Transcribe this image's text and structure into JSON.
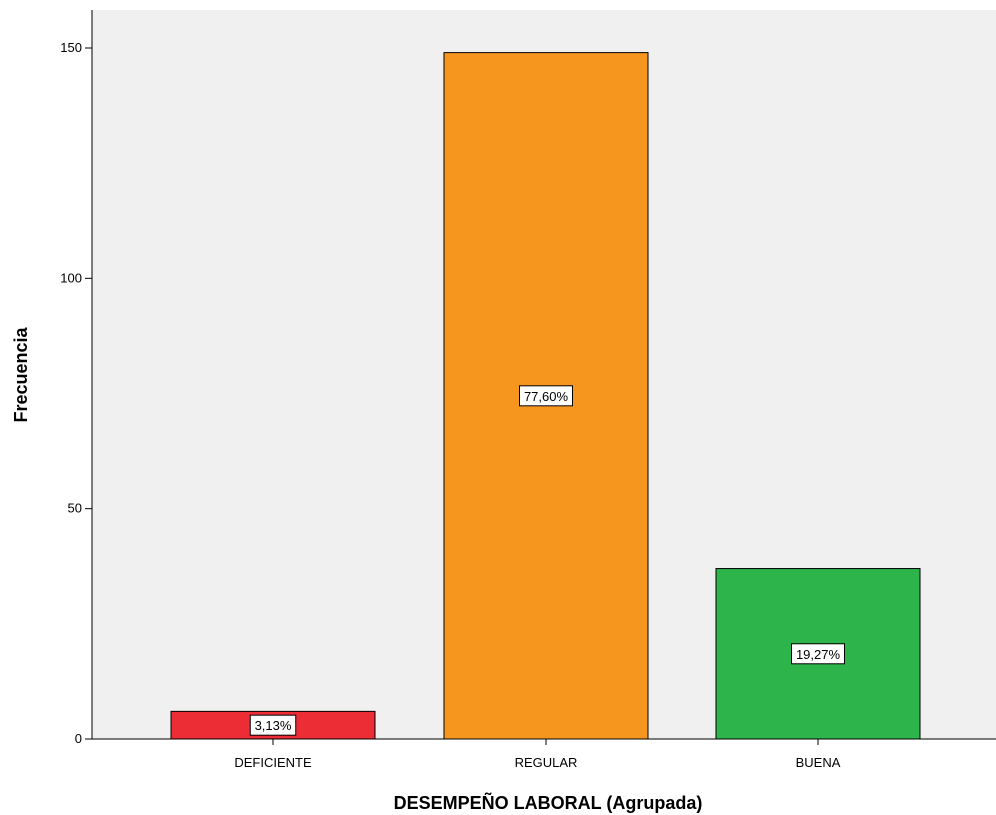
{
  "chart_data": {
    "type": "bar",
    "title": "",
    "xlabel": "DESEMPEÑO LABORAL  (Agrupada)",
    "ylabel": "Frecuencia",
    "categories": [
      "DEFICIENTE",
      "REGULAR",
      "BUENA"
    ],
    "values": [
      6,
      149,
      37
    ],
    "data_labels": [
      "3,13%",
      "77,60%",
      "19,27%"
    ],
    "colors": [
      "#ed2d36",
      "#f7961f",
      "#2db44a"
    ],
    "ylim": [
      0,
      150
    ],
    "yticks": [
      0,
      50,
      100,
      150
    ],
    "ytick_labels": [
      "0",
      "50",
      "100",
      "150"
    ],
    "grid": false,
    "legend": "none",
    "plot_background": "#f0f0f0"
  }
}
